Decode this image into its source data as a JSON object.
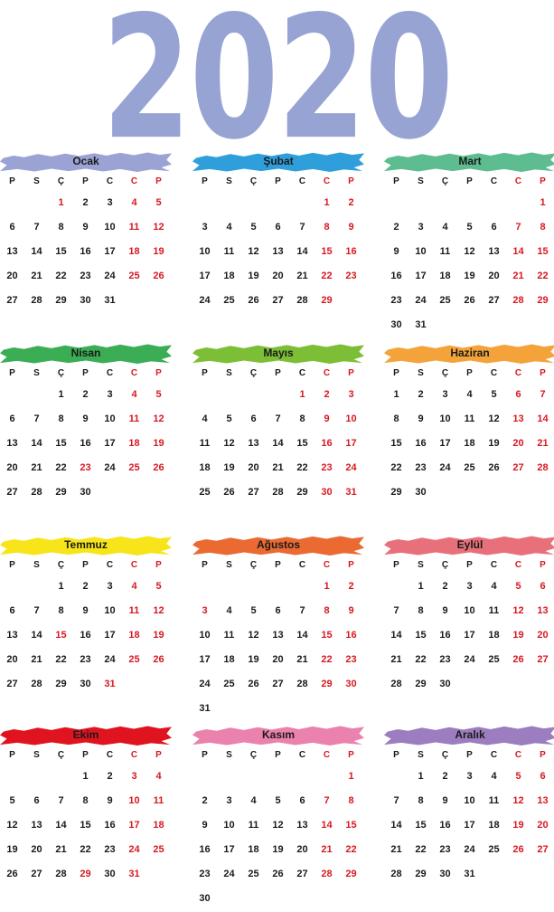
{
  "year": "2020",
  "weekdays": [
    "P",
    "S",
    "Ç",
    "P",
    "C",
    "C",
    "P"
  ],
  "weekend_color": "#d71920",
  "holiday_color": "#d71920",
  "months": [
    {
      "name": "Ocak",
      "color": "#9aa3d3",
      "holidays": [
        1
      ],
      "weeks": [
        [
          null,
          null,
          1,
          2,
          3,
          4,
          5
        ],
        [
          6,
          7,
          8,
          9,
          10,
          11,
          12
        ],
        [
          13,
          14,
          15,
          16,
          17,
          18,
          19
        ],
        [
          20,
          21,
          22,
          23,
          24,
          25,
          26
        ],
        [
          27,
          28,
          29,
          30,
          31
        ]
      ]
    },
    {
      "name": "Şubat",
      "color": "#2f9fdc",
      "holidays": [],
      "weeks": [
        [
          null,
          null,
          null,
          null,
          null,
          1,
          2
        ],
        [
          3,
          4,
          5,
          6,
          7,
          8,
          9
        ],
        [
          10,
          11,
          12,
          13,
          14,
          15,
          16
        ],
        [
          17,
          18,
          19,
          20,
          21,
          22,
          23
        ],
        [
          24,
          25,
          26,
          27,
          28,
          29
        ]
      ]
    },
    {
      "name": "Mart",
      "color": "#5dbd91",
      "holidays": [],
      "weeks": [
        [
          null,
          null,
          null,
          null,
          null,
          null,
          1
        ],
        [
          2,
          3,
          4,
          5,
          6,
          7,
          8
        ],
        [
          9,
          10,
          11,
          12,
          13,
          14,
          15
        ],
        [
          16,
          17,
          18,
          19,
          20,
          21,
          22
        ],
        [
          23,
          24,
          25,
          26,
          27,
          28,
          29
        ],
        [
          30,
          31
        ]
      ]
    },
    {
      "name": "Nisan",
      "color": "#3aad55",
      "holidays": [
        23
      ],
      "weeks": [
        [
          null,
          null,
          1,
          2,
          3,
          4,
          5
        ],
        [
          6,
          7,
          8,
          9,
          10,
          11,
          12
        ],
        [
          13,
          14,
          15,
          16,
          17,
          18,
          19
        ],
        [
          20,
          21,
          22,
          23,
          24,
          25,
          26
        ],
        [
          27,
          28,
          29,
          30
        ]
      ]
    },
    {
      "name": "Mayıs",
      "color": "#7cbe35",
      "holidays": [
        1
      ],
      "weeks": [
        [
          null,
          null,
          null,
          null,
          1,
          2,
          3
        ],
        [
          4,
          5,
          6,
          7,
          8,
          9,
          10
        ],
        [
          11,
          12,
          13,
          14,
          15,
          16,
          17
        ],
        [
          18,
          19,
          20,
          21,
          22,
          23,
          24
        ],
        [
          25,
          26,
          27,
          28,
          29,
          30,
          31
        ]
      ]
    },
    {
      "name": "Haziran",
      "color": "#f3a33a",
      "holidays": [],
      "weeks": [
        [
          1,
          2,
          3,
          4,
          5,
          6,
          7
        ],
        [
          8,
          9,
          10,
          11,
          12,
          13,
          14
        ],
        [
          15,
          16,
          17,
          18,
          19,
          20,
          21
        ],
        [
          22,
          23,
          24,
          25,
          26,
          27,
          28
        ],
        [
          29,
          30
        ]
      ]
    },
    {
      "name": "Temmuz",
      "color": "#f7e51a",
      "holidays": [
        15,
        31
      ],
      "weeks": [
        [
          null,
          null,
          1,
          2,
          3,
          4,
          5
        ],
        [
          6,
          7,
          8,
          9,
          10,
          11,
          12
        ],
        [
          13,
          14,
          15,
          16,
          17,
          18,
          19
        ],
        [
          20,
          21,
          22,
          23,
          24,
          25,
          26
        ],
        [
          27,
          28,
          29,
          30,
          31
        ]
      ]
    },
    {
      "name": "Ağustos",
      "color": "#ea6a32",
      "holidays": [
        3
      ],
      "weeks": [
        [
          null,
          null,
          null,
          null,
          null,
          1,
          2
        ],
        [
          3,
          4,
          5,
          6,
          7,
          8,
          9
        ],
        [
          10,
          11,
          12,
          13,
          14,
          15,
          16
        ],
        [
          17,
          18,
          19,
          20,
          21,
          22,
          23
        ],
        [
          24,
          25,
          26,
          27,
          28,
          29,
          30
        ],
        [
          31
        ]
      ]
    },
    {
      "name": "Eylül",
      "color": "#e8707a",
      "holidays": [],
      "weeks": [
        [
          null,
          1,
          2,
          3,
          4,
          5,
          6
        ],
        [
          7,
          8,
          9,
          10,
          11,
          12,
          13
        ],
        [
          14,
          15,
          16,
          17,
          18,
          19,
          20
        ],
        [
          21,
          22,
          23,
          24,
          25,
          26,
          27
        ],
        [
          28,
          29,
          30
        ]
      ]
    },
    {
      "name": "Ekim",
      "color": "#e0141e",
      "holidays": [
        29
      ],
      "weeks": [
        [
          null,
          null,
          null,
          1,
          2,
          3,
          4
        ],
        [
          5,
          6,
          7,
          8,
          9,
          10,
          11
        ],
        [
          12,
          13,
          14,
          15,
          16,
          17,
          18
        ],
        [
          19,
          20,
          21,
          22,
          23,
          24,
          25
        ],
        [
          26,
          27,
          28,
          29,
          30,
          31
        ]
      ]
    },
    {
      "name": "Kasım",
      "color": "#ea82ad",
      "holidays": [],
      "weeks": [
        [
          null,
          null,
          null,
          null,
          null,
          null,
          1
        ],
        [
          2,
          3,
          4,
          5,
          6,
          7,
          8
        ],
        [
          9,
          10,
          11,
          12,
          13,
          14,
          15
        ],
        [
          16,
          17,
          18,
          19,
          20,
          21,
          22
        ],
        [
          23,
          24,
          25,
          26,
          27,
          28,
          29
        ],
        [
          30
        ]
      ]
    },
    {
      "name": "Aralık",
      "color": "#9c7dc0",
      "holidays": [],
      "weeks": [
        [
          null,
          1,
          2,
          3,
          4,
          5,
          6
        ],
        [
          7,
          8,
          9,
          10,
          11,
          12,
          13
        ],
        [
          14,
          15,
          16,
          17,
          18,
          19,
          20
        ],
        [
          21,
          22,
          23,
          24,
          25,
          26,
          27
        ],
        [
          28,
          29,
          30,
          31
        ]
      ]
    }
  ]
}
